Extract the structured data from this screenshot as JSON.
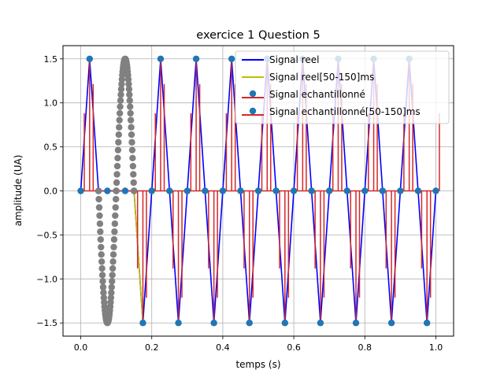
{
  "chart_data": {
    "type": "line",
    "title": "exercice 1 Question 5",
    "xlabel": "temps (s)",
    "ylabel": "amplitude (UA)",
    "xlim": [
      -0.05,
      1.05
    ],
    "ylim": [
      -1.65,
      1.65
    ],
    "xticks": [
      0.0,
      0.2,
      0.4,
      0.6,
      0.8,
      1.0
    ],
    "xtick_labels": [
      "0.0",
      "0.2",
      "0.4",
      "0.6",
      "0.8",
      "1.0"
    ],
    "yticks": [
      -1.5,
      -1.0,
      -0.5,
      0.0,
      0.5,
      1.0,
      1.5
    ],
    "ytick_labels": [
      "−1.5",
      "−1.0",
      "−0.5",
      "0.0",
      "0.5",
      "1.0",
      "1.5"
    ],
    "grid": true,
    "legend_position": "top-right",
    "signal": {
      "amplitude": 1.5,
      "frequency_hz": 10,
      "sample_rate_hz": 40,
      "window_s": [
        0.05,
        0.15
      ]
    },
    "series": [
      {
        "name": "Signal reel",
        "kind": "line",
        "color": "#0000ff",
        "description": "1.5*sin(2*pi*10*t), t in [0,1]"
      },
      {
        "name": "Signal reel[50-150]ms",
        "kind": "line",
        "color": "#bfbf00",
        "description": "same signal restricted to 0.05-0.15 s"
      },
      {
        "name": "Signal echantillonné",
        "kind": "stem",
        "color": "#d62728",
        "marker_color": "#1f77b4",
        "x_step": 0.025,
        "x_range": [
          0,
          1
        ]
      },
      {
        "name": "Signal echantillonné[50-150]ms",
        "kind": "stem",
        "color": "#d62728",
        "marker_color": "#808080",
        "x_step": 0.001,
        "x_range": [
          0.05,
          0.15
        ]
      }
    ]
  }
}
